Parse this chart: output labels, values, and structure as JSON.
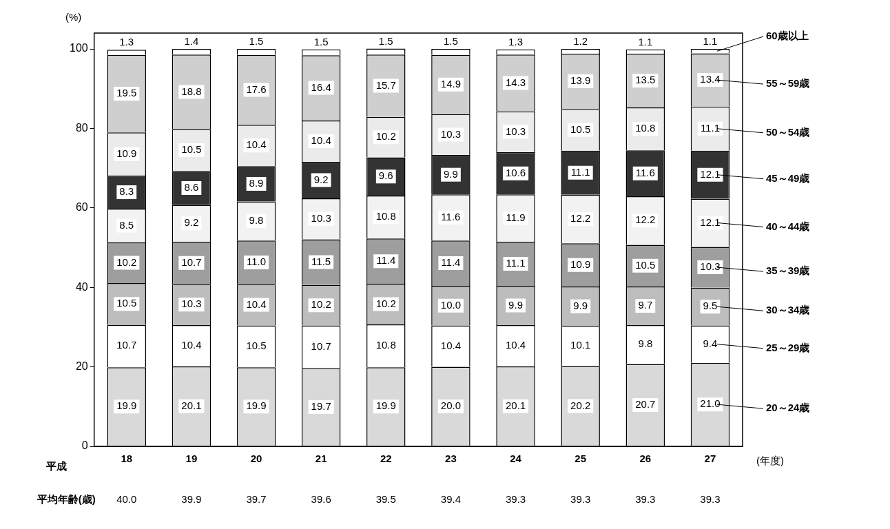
{
  "chart_data": {
    "type": "bar",
    "stacked": true,
    "ylabel": "(%)",
    "xlabel": "(年度)",
    "categories": [
      "18",
      "19",
      "20",
      "21",
      "22",
      "23",
      "24",
      "25",
      "26",
      "27"
    ],
    "ylim": [
      0,
      104
    ],
    "yticks": [
      0,
      20,
      40,
      60,
      80,
      100
    ],
    "grid": false,
    "annotations": [
      "平成",
      "平均年齢(歳)",
      "40.0",
      "39.9",
      "39.7",
      "39.6",
      "39.5",
      "39.4",
      "39.3",
      "39.3",
      "39.3",
      "39.3"
    ],
    "series": [
      {
        "name": "20～24歳",
        "color": "#d9d9d9",
        "values": [
          19.9,
          20.1,
          19.9,
          19.7,
          19.9,
          20.0,
          20.1,
          20.2,
          20.7,
          21.0
        ],
        "value_labels": [
          "19.9",
          "20.1",
          "19.9",
          "19.7",
          "19.9",
          "20.0",
          "20.1",
          "20.2",
          "20.7",
          "21.0"
        ]
      },
      {
        "name": "25～29歳",
        "color": "#ffffff",
        "values": [
          10.7,
          10.4,
          10.5,
          10.7,
          10.8,
          10.4,
          10.4,
          10.1,
          9.8,
          9.4
        ],
        "value_labels": [
          "10.7",
          "10.4",
          "10.5",
          "10.7",
          "10.8",
          "10.4",
          "10.4",
          "10.1",
          "9.8",
          "9.4"
        ]
      },
      {
        "name": "30～34歳",
        "color": "#bdbdbd",
        "values": [
          10.5,
          10.3,
          10.4,
          10.2,
          10.2,
          10.0,
          9.9,
          9.9,
          9.7,
          9.5
        ],
        "value_labels": [
          "10.5",
          "10.3",
          "10.4",
          "10.2",
          "10.2",
          "10.0",
          "9.9",
          "9.9",
          "9.7",
          "9.5"
        ]
      },
      {
        "name": "35～39歳",
        "color": "#9e9e9e",
        "values": [
          10.2,
          10.7,
          11.0,
          11.5,
          11.4,
          11.4,
          11.1,
          10.9,
          10.5,
          10.3
        ],
        "value_labels": [
          "10.2",
          "10.7",
          "11.0",
          "11.5",
          "11.4",
          "11.4",
          "11.1",
          "10.9",
          "10.5",
          "10.3"
        ]
      },
      {
        "name": "40～44歳",
        "color": "#f2f2f2",
        "values": [
          8.5,
          9.2,
          9.8,
          10.3,
          10.8,
          11.6,
          11.9,
          12.2,
          12.2,
          12.1
        ],
        "value_labels": [
          "8.5",
          "9.2",
          "9.8",
          "10.3",
          "10.8",
          "11.6",
          "11.9",
          "12.2",
          "12.2",
          "12.1"
        ]
      },
      {
        "name": "45～49歳",
        "color": "#333333",
        "values": [
          8.3,
          8.6,
          8.9,
          9.2,
          9.6,
          9.9,
          10.6,
          11.1,
          11.6,
          12.1
        ],
        "value_labels": [
          "8.3",
          "8.6",
          "8.9",
          "9.2",
          "9.6",
          "9.9",
          "10.6",
          "11.1",
          "11.6",
          "12.1"
        ]
      },
      {
        "name": "50～54歳",
        "color": "#ebebeb",
        "values": [
          10.9,
          10.5,
          10.4,
          10.4,
          10.2,
          10.3,
          10.3,
          10.5,
          10.8,
          11.1
        ],
        "value_labels": [
          "10.9",
          "10.5",
          "10.4",
          "10.4",
          "10.2",
          "10.3",
          "10.3",
          "10.5",
          "10.8",
          "11.1"
        ]
      },
      {
        "name": "55～59歳",
        "color": "#cfcfcf",
        "values": [
          19.5,
          18.8,
          17.6,
          16.4,
          15.7,
          14.9,
          14.3,
          13.9,
          13.5,
          13.4
        ],
        "value_labels": [
          "19.5",
          "18.8",
          "17.6",
          "16.4",
          "15.7",
          "14.9",
          "14.3",
          "13.9",
          "13.5",
          "13.4"
        ]
      },
      {
        "name": "60歳以上",
        "color": "#ffffff",
        "values": [
          1.3,
          1.4,
          1.5,
          1.5,
          1.5,
          1.5,
          1.3,
          1.2,
          1.1,
          1.1
        ],
        "value_labels": [
          "1.3",
          "1.4",
          "1.5",
          "1.5",
          "1.5",
          "1.5",
          "1.3",
          "1.2",
          "1.1",
          "1.1"
        ]
      }
    ]
  }
}
